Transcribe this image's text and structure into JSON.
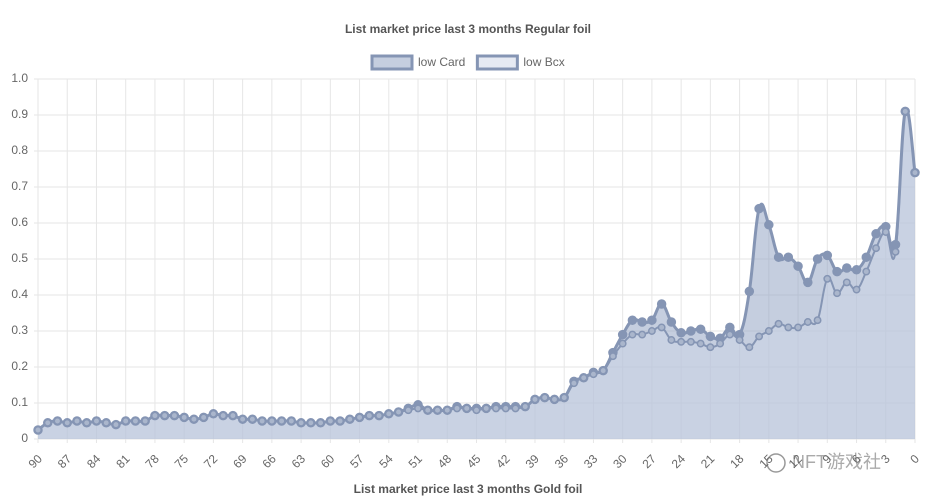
{
  "chart_data": {
    "type": "line",
    "title": "List market price last 3 months Regular foil",
    "footer": "List market price last 3 months Gold foil",
    "watermark": "NFT游戏社",
    "categories": [
      90,
      null,
      null,
      87,
      null,
      null,
      84,
      null,
      null,
      81,
      null,
      null,
      78,
      null,
      null,
      75,
      null,
      null,
      72,
      null,
      null,
      69,
      null,
      null,
      66,
      null,
      null,
      63,
      null,
      null,
      60,
      null,
      null,
      57,
      null,
      null,
      54,
      null,
      null,
      51,
      null,
      null,
      48,
      null,
      null,
      45,
      null,
      null,
      42,
      null,
      null,
      39,
      null,
      null,
      36,
      null,
      null,
      33,
      null,
      null,
      30,
      null,
      null,
      27,
      null,
      null,
      24,
      null,
      null,
      21,
      null,
      null,
      18,
      null,
      null,
      15,
      null,
      null,
      12,
      null,
      null,
      9,
      null,
      null,
      6,
      null,
      null,
      3,
      null,
      null,
      0
    ],
    "series": [
      {
        "name": "low Card",
        "color": "#8595b4",
        "fill": "rgba(140,158,192,0.5)",
        "values": [
          0.025,
          0.045,
          0.05,
          0.045,
          0.05,
          0.045,
          0.05,
          0.045,
          0.04,
          0.05,
          0.05,
          0.05,
          0.065,
          0.065,
          0.065,
          0.06,
          0.055,
          0.06,
          0.07,
          0.065,
          0.065,
          0.055,
          0.055,
          0.05,
          0.05,
          0.05,
          0.05,
          0.045,
          0.045,
          0.045,
          0.05,
          0.05,
          0.055,
          0.06,
          0.065,
          0.065,
          0.07,
          0.075,
          0.085,
          0.095,
          0.08,
          0.08,
          0.08,
          0.09,
          0.085,
          0.085,
          0.085,
          0.09,
          0.09,
          0.09,
          0.09,
          0.11,
          0.115,
          0.11,
          0.115,
          0.16,
          0.17,
          0.185,
          0.19,
          0.24,
          0.29,
          0.33,
          0.325,
          0.33,
          0.375,
          0.325,
          0.295,
          0.3,
          0.305,
          0.285,
          0.28,
          0.31,
          0.29,
          0.41,
          0.64,
          0.595,
          0.505,
          0.505,
          0.48,
          0.435,
          0.5,
          0.51,
          0.465,
          0.475,
          0.47,
          0.505,
          0.57,
          0.59,
          0.54,
          0.91,
          0.74
        ]
      },
      {
        "name": "low Bcx",
        "color": "#8595b4",
        "fill": "rgba(205,213,232,0.5)",
        "values": [
          0.025,
          0.045,
          0.05,
          0.045,
          0.05,
          0.045,
          0.05,
          0.045,
          0.04,
          0.05,
          0.05,
          0.05,
          0.065,
          0.065,
          0.065,
          0.06,
          0.055,
          0.06,
          0.07,
          0.065,
          0.065,
          0.055,
          0.055,
          0.05,
          0.05,
          0.05,
          0.05,
          0.045,
          0.045,
          0.045,
          0.05,
          0.05,
          0.055,
          0.06,
          0.065,
          0.065,
          0.07,
          0.075,
          0.08,
          0.085,
          0.08,
          0.08,
          0.08,
          0.085,
          0.085,
          0.08,
          0.085,
          0.085,
          0.085,
          0.085,
          0.09,
          0.11,
          0.115,
          0.11,
          0.115,
          0.155,
          0.17,
          0.18,
          0.19,
          0.23,
          0.265,
          0.29,
          0.29,
          0.3,
          0.31,
          0.275,
          0.27,
          0.27,
          0.265,
          0.255,
          0.265,
          0.29,
          0.275,
          0.255,
          0.285,
          0.3,
          0.32,
          0.31,
          0.31,
          0.325,
          0.33,
          0.445,
          0.405,
          0.435,
          0.415,
          0.465,
          0.53,
          0.575,
          0.52,
          0.91,
          0.74
        ]
      }
    ],
    "ylim": [
      0,
      1
    ],
    "yticks": [
      0,
      0.1,
      0.2,
      0.3,
      0.4,
      0.5,
      0.6,
      0.7,
      0.8,
      0.9,
      {
        "value": 1,
        "label": "1.0"
      }
    ],
    "grid": true,
    "legend": "top"
  }
}
